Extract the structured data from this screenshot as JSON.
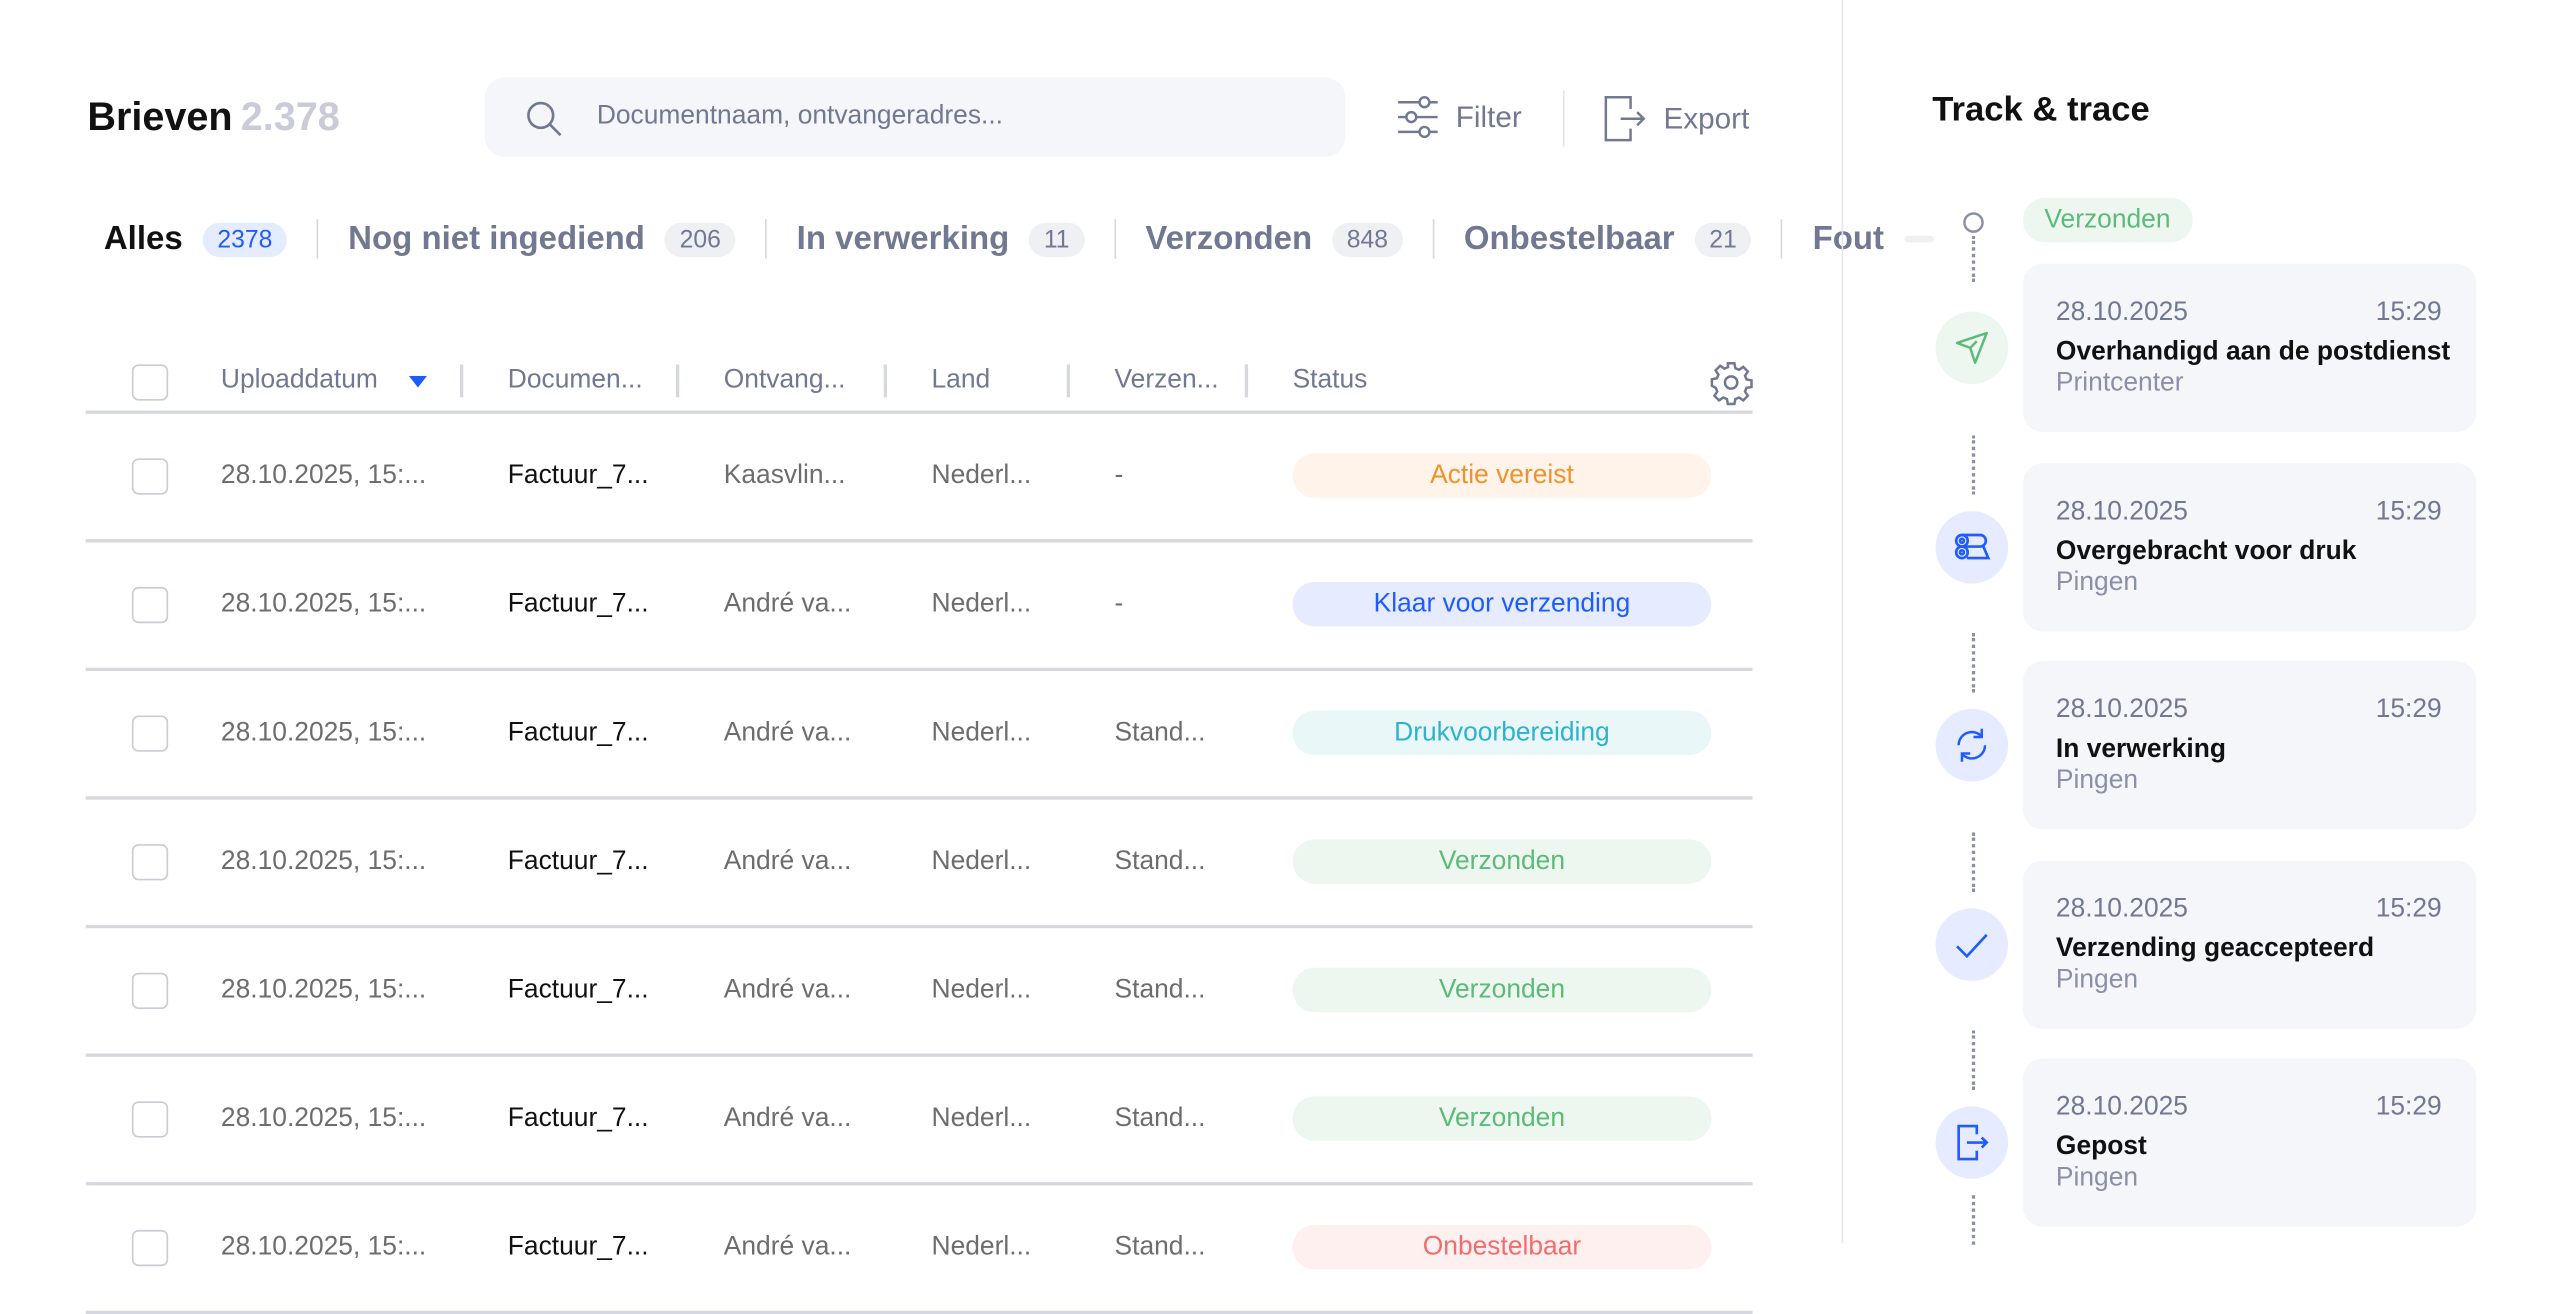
{
  "header": {
    "title": "Brieven",
    "count": "2.378",
    "search_placeholder": "Documentnaam, ontvangeradres...",
    "filter_label": "Filter",
    "export_label": "Export"
  },
  "tabs": [
    {
      "label": "Alles",
      "count": "2378",
      "active": true
    },
    {
      "label": "Nog niet ingediend",
      "count": "206"
    },
    {
      "label": "In verwerking",
      "count": "11"
    },
    {
      "label": "Verzonden",
      "count": "848"
    },
    {
      "label": "Onbestelbaar",
      "count": "21"
    },
    {
      "label": "Fout",
      "count": ""
    }
  ],
  "table": {
    "columns": [
      "Uploaddatum",
      "Documen...",
      "Ontvang...",
      "Land",
      "Verzen...",
      "Status"
    ],
    "rows": [
      {
        "date": "28.10.2025, 15:...",
        "doc": "Factuur_7...",
        "recipient": "Kaasvlin...",
        "country": "Nederl...",
        "shipping": "-",
        "status": "Actie vereist",
        "status_kind": "orange"
      },
      {
        "date": "28.10.2025, 15:...",
        "doc": "Factuur_7...",
        "recipient": "André va...",
        "country": "Nederl...",
        "shipping": "-",
        "status": "Klaar voor verzending",
        "status_kind": "blue"
      },
      {
        "date": "28.10.2025, 15:...",
        "doc": "Factuur_7...",
        "recipient": "André va...",
        "country": "Nederl...",
        "shipping": "Stand...",
        "status": "Drukvoorbereiding",
        "status_kind": "cyan"
      },
      {
        "date": "28.10.2025, 15:...",
        "doc": "Factuur_7...",
        "recipient": "André va...",
        "country": "Nederl...",
        "shipping": "Stand...",
        "status": "Verzonden",
        "status_kind": "green"
      },
      {
        "date": "28.10.2025, 15:...",
        "doc": "Factuur_7...",
        "recipient": "André va...",
        "country": "Nederl...",
        "shipping": "Stand...",
        "status": "Verzonden",
        "status_kind": "green"
      },
      {
        "date": "28.10.2025, 15:...",
        "doc": "Factuur_7...",
        "recipient": "André va...",
        "country": "Nederl...",
        "shipping": "Stand...",
        "status": "Verzonden",
        "status_kind": "green"
      },
      {
        "date": "28.10.2025, 15:...",
        "doc": "Factuur_7...",
        "recipient": "André va...",
        "country": "Nederl...",
        "shipping": "Stand...",
        "status": "Onbestelbaar",
        "status_kind": "red"
      }
    ]
  },
  "status_colors": {
    "orange": {
      "bg": "#fff3ea",
      "fg": "#f0922b"
    },
    "blue": {
      "bg": "#e6ebff",
      "fg": "#1f5cff"
    },
    "cyan": {
      "bg": "#eaf7f9",
      "fg": "#2bb3cf"
    },
    "green": {
      "bg": "#eef6f0",
      "fg": "#5cbb7a"
    },
    "red": {
      "bg": "#fff0f0",
      "fg": "#f06d6d"
    }
  },
  "track": {
    "title": "Track & trace",
    "current_status": "Verzonden",
    "events": [
      {
        "date": "28.10.2025",
        "time": "15:29",
        "title": "Overhandigd aan de postdienst",
        "source": "Printcenter",
        "icon": "paper-plane-icon"
      },
      {
        "date": "28.10.2025",
        "time": "15:29",
        "title": "Overgebracht voor druk",
        "source": "Pingen",
        "icon": "printer-rolls-icon"
      },
      {
        "date": "28.10.2025",
        "time": "15:29",
        "title": "In verwerking",
        "source": "Pingen",
        "icon": "refresh-icon"
      },
      {
        "date": "28.10.2025",
        "time": "15:29",
        "title": "Verzending geaccepteerd",
        "source": "Pingen",
        "icon": "checkmark-icon"
      },
      {
        "date": "28.10.2025",
        "time": "15:29",
        "title": "Gepost",
        "source": "Pingen",
        "icon": "file-export-icon"
      }
    ]
  }
}
